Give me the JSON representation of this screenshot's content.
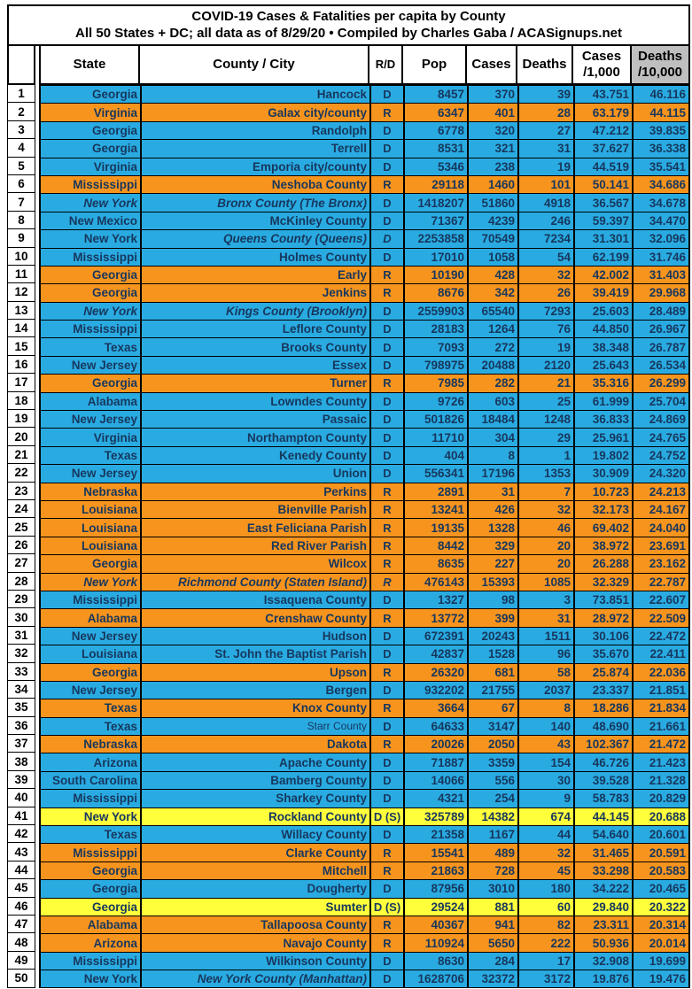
{
  "title": {
    "line1": "COVID-19 Cases & Fatalities per capita by County",
    "line2": "All 50 States + DC; all data as of 8/29/20  • Compiled by Charles Gaba / ACASignups.net"
  },
  "colors": {
    "dem_blue": "#29ABE2",
    "rep_orange": "#F7941E",
    "dem_switch_yellow": "#FFFF3C",
    "header_gray": "#BFBFBF",
    "text_navy": "#17375D",
    "border_black": "#000000"
  },
  "table": {
    "columns": [
      {
        "label": ""
      },
      {
        "label": "State"
      },
      {
        "label": "County / City"
      },
      {
        "label": "R/D"
      },
      {
        "label": "Pop"
      },
      {
        "label": "Cases"
      },
      {
        "label": "Deaths"
      },
      {
        "label": "Cases",
        "label2": "/1,000"
      },
      {
        "label": "Deaths",
        "label2": "/10,000",
        "gray": true
      }
    ],
    "rows": [
      {
        "rank": "1",
        "state": "Georgia",
        "county": "Hancock",
        "rd": "D",
        "pop": "8457",
        "cases": "370",
        "deaths": "39",
        "c1k": "43.751",
        "d10k": "46.116",
        "it": []
      },
      {
        "rank": "2",
        "state": "Virginia",
        "county": "Galax city/county",
        "rd": "R",
        "pop": "6347",
        "cases": "401",
        "deaths": "28",
        "c1k": "63.179",
        "d10k": "44.115",
        "it": []
      },
      {
        "rank": "3",
        "state": "Georgia",
        "county": "Randolph",
        "rd": "D",
        "pop": "6778",
        "cases": "320",
        "deaths": "27",
        "c1k": "47.212",
        "d10k": "39.835",
        "it": []
      },
      {
        "rank": "4",
        "state": "Georgia",
        "county": "Terrell",
        "rd": "D",
        "pop": "8531",
        "cases": "321",
        "deaths": "31",
        "c1k": "37.627",
        "d10k": "36.338",
        "it": []
      },
      {
        "rank": "5",
        "state": "Virginia",
        "county": "Emporia city/county",
        "rd": "D",
        "pop": "5346",
        "cases": "238",
        "deaths": "19",
        "c1k": "44.519",
        "d10k": "35.541",
        "it": []
      },
      {
        "rank": "6",
        "state": "Mississippi",
        "county": "Neshoba County",
        "rd": "R",
        "pop": "29118",
        "cases": "1460",
        "deaths": "101",
        "c1k": "50.141",
        "d10k": "34.686",
        "it": []
      },
      {
        "rank": "7",
        "state": "New York",
        "county": "Bronx County (The Bronx)",
        "rd": "D",
        "pop": "1418207",
        "cases": "51860",
        "deaths": "4918",
        "c1k": "36.567",
        "d10k": "34.678",
        "it": [
          "state",
          "county"
        ]
      },
      {
        "rank": "8",
        "state": "New Mexico",
        "county": "McKinley County",
        "rd": "D",
        "pop": "71367",
        "cases": "4239",
        "deaths": "246",
        "c1k": "59.397",
        "d10k": "34.470",
        "it": []
      },
      {
        "rank": "9",
        "state": "New York",
        "county": "Queens County (Queens)",
        "rd": "D",
        "pop": "2253858",
        "cases": "70549",
        "deaths": "7234",
        "c1k": "31.301",
        "d10k": "32.096",
        "it": [
          "county",
          "rd"
        ]
      },
      {
        "rank": "10",
        "state": "Mississippi",
        "county": "Holmes County",
        "rd": "D",
        "pop": "17010",
        "cases": "1058",
        "deaths": "54",
        "c1k": "62.199",
        "d10k": "31.746",
        "it": []
      },
      {
        "rank": "11",
        "state": "Georgia",
        "county": "Early",
        "rd": "R",
        "pop": "10190",
        "cases": "428",
        "deaths": "32",
        "c1k": "42.002",
        "d10k": "31.403",
        "it": []
      },
      {
        "rank": "12",
        "state": "Georgia",
        "county": "Jenkins",
        "rd": "R",
        "pop": "8676",
        "cases": "342",
        "deaths": "26",
        "c1k": "39.419",
        "d10k": "29.968",
        "it": []
      },
      {
        "rank": "13",
        "state": "New York",
        "county": "Kings County (Brooklyn)",
        "rd": "D",
        "pop": "2559903",
        "cases": "65540",
        "deaths": "7293",
        "c1k": "25.603",
        "d10k": "28.489",
        "it": [
          "state",
          "county"
        ]
      },
      {
        "rank": "14",
        "state": "Mississippi",
        "county": "Leflore County",
        "rd": "D",
        "pop": "28183",
        "cases": "1264",
        "deaths": "76",
        "c1k": "44.850",
        "d10k": "26.967",
        "it": []
      },
      {
        "rank": "15",
        "state": "Texas",
        "county": "Brooks County",
        "rd": "D",
        "pop": "7093",
        "cases": "272",
        "deaths": "19",
        "c1k": "38.348",
        "d10k": "26.787",
        "it": []
      },
      {
        "rank": "16",
        "state": "New Jersey",
        "county": "Essex",
        "rd": "D",
        "pop": "798975",
        "cases": "20488",
        "deaths": "2120",
        "c1k": "25.643",
        "d10k": "26.534",
        "it": []
      },
      {
        "rank": "17",
        "state": "Georgia",
        "county": "Turner",
        "rd": "R",
        "pop": "7985",
        "cases": "282",
        "deaths": "21",
        "c1k": "35.316",
        "d10k": "26.299",
        "it": []
      },
      {
        "rank": "18",
        "state": "Alabama",
        "county": "Lowndes County",
        "rd": "D",
        "pop": "9726",
        "cases": "603",
        "deaths": "25",
        "c1k": "61.999",
        "d10k": "25.704",
        "it": []
      },
      {
        "rank": "19",
        "state": "New Jersey",
        "county": "Passaic",
        "rd": "D",
        "pop": "501826",
        "cases": "18484",
        "deaths": "1248",
        "c1k": "36.833",
        "d10k": "24.869",
        "it": []
      },
      {
        "rank": "20",
        "state": "Virginia",
        "county": "Northampton County",
        "rd": "D",
        "pop": "11710",
        "cases": "304",
        "deaths": "29",
        "c1k": "25.961",
        "d10k": "24.765",
        "it": []
      },
      {
        "rank": "21",
        "state": "Texas",
        "county": "Kenedy County",
        "rd": "D",
        "pop": "404",
        "cases": "8",
        "deaths": "1",
        "c1k": "19.802",
        "d10k": "24.752",
        "it": []
      },
      {
        "rank": "22",
        "state": "New Jersey",
        "county": "Union",
        "rd": "D",
        "pop": "556341",
        "cases": "17196",
        "deaths": "1353",
        "c1k": "30.909",
        "d10k": "24.320",
        "it": []
      },
      {
        "rank": "23",
        "state": "Nebraska",
        "county": "Perkins",
        "rd": "R",
        "pop": "2891",
        "cases": "31",
        "deaths": "7",
        "c1k": "10.723",
        "d10k": "24.213",
        "it": []
      },
      {
        "rank": "24",
        "state": "Louisiana",
        "county": "Bienville Parish",
        "rd": "R",
        "pop": "13241",
        "cases": "426",
        "deaths": "32",
        "c1k": "32.173",
        "d10k": "24.167",
        "it": []
      },
      {
        "rank": "25",
        "state": "Louisiana",
        "county": "East Feliciana Parish",
        "rd": "R",
        "pop": "19135",
        "cases": "1328",
        "deaths": "46",
        "c1k": "69.402",
        "d10k": "24.040",
        "it": []
      },
      {
        "rank": "26",
        "state": "Louisiana",
        "county": "Red River Parish",
        "rd": "R",
        "pop": "8442",
        "cases": "329",
        "deaths": "20",
        "c1k": "38.972",
        "d10k": "23.691",
        "it": []
      },
      {
        "rank": "27",
        "state": "Georgia",
        "county": "Wilcox",
        "rd": "R",
        "pop": "8635",
        "cases": "227",
        "deaths": "20",
        "c1k": "26.288",
        "d10k": "23.162",
        "it": []
      },
      {
        "rank": "28",
        "state": "New York",
        "county": "Richmond County (Staten Island)",
        "rd": "R",
        "pop": "476143",
        "cases": "15393",
        "deaths": "1085",
        "c1k": "32.329",
        "d10k": "22.787",
        "it": [
          "state",
          "county",
          "rd"
        ]
      },
      {
        "rank": "29",
        "state": "Mississippi",
        "county": "Issaquena County",
        "rd": "D",
        "pop": "1327",
        "cases": "98",
        "deaths": "3",
        "c1k": "73.851",
        "d10k": "22.607",
        "it": []
      },
      {
        "rank": "30",
        "state": "Alabama",
        "county": "Crenshaw County",
        "rd": "R",
        "pop": "13772",
        "cases": "399",
        "deaths": "31",
        "c1k": "28.972",
        "d10k": "22.509",
        "it": []
      },
      {
        "rank": "31",
        "state": "New Jersey",
        "county": "Hudson",
        "rd": "D",
        "pop": "672391",
        "cases": "20243",
        "deaths": "1511",
        "c1k": "30.106",
        "d10k": "22.472",
        "it": []
      },
      {
        "rank": "32",
        "state": "Louisiana",
        "county": "St. John the Baptist Parish",
        "rd": "D",
        "pop": "42837",
        "cases": "1528",
        "deaths": "96",
        "c1k": "35.670",
        "d10k": "22.411",
        "it": []
      },
      {
        "rank": "33",
        "state": "Georgia",
        "county": "Upson",
        "rd": "R",
        "pop": "26320",
        "cases": "681",
        "deaths": "58",
        "c1k": "25.874",
        "d10k": "22.036",
        "it": []
      },
      {
        "rank": "34",
        "state": "New Jersey",
        "county": "Bergen",
        "rd": "D",
        "pop": "932202",
        "cases": "21755",
        "deaths": "2037",
        "c1k": "23.337",
        "d10k": "21.851",
        "it": []
      },
      {
        "rank": "35",
        "state": "Texas",
        "county": "Knox County",
        "rd": "R",
        "pop": "3664",
        "cases": "67",
        "deaths": "8",
        "c1k": "18.286",
        "d10k": "21.834",
        "it": []
      },
      {
        "rank": "36",
        "state": "Texas",
        "county": "Starr County",
        "rd": "D",
        "pop": "64633",
        "cases": "3147",
        "deaths": "140",
        "c1k": "48.690",
        "d10k": "21.661",
        "it": [],
        "county_small": true
      },
      {
        "rank": "37",
        "state": "Nebraska",
        "county": "Dakota",
        "rd": "R",
        "pop": "20026",
        "cases": "2050",
        "deaths": "43",
        "c1k": "102.367",
        "d10k": "21.472",
        "it": []
      },
      {
        "rank": "38",
        "state": "Arizona",
        "county": "Apache County",
        "rd": "D",
        "pop": "71887",
        "cases": "3359",
        "deaths": "154",
        "c1k": "46.726",
        "d10k": "21.423",
        "it": []
      },
      {
        "rank": "39",
        "state": "South Carolina",
        "county": "Bamberg County",
        "rd": "D",
        "pop": "14066",
        "cases": "556",
        "deaths": "30",
        "c1k": "39.528",
        "d10k": "21.328",
        "it": []
      },
      {
        "rank": "40",
        "state": "Mississippi",
        "county": "Sharkey County",
        "rd": "D",
        "pop": "4321",
        "cases": "254",
        "deaths": "9",
        "c1k": "58.783",
        "d10k": "20.829",
        "it": []
      },
      {
        "rank": "41",
        "state": "New York",
        "county": "Rockland County",
        "rd": "D (S)",
        "pop": "325789",
        "cases": "14382",
        "deaths": "674",
        "c1k": "44.145",
        "d10k": "20.688",
        "it": []
      },
      {
        "rank": "42",
        "state": "Texas",
        "county": "Willacy County",
        "rd": "D",
        "pop": "21358",
        "cases": "1167",
        "deaths": "44",
        "c1k": "54.640",
        "d10k": "20.601",
        "it": []
      },
      {
        "rank": "43",
        "state": "Mississippi",
        "county": "Clarke County",
        "rd": "R",
        "pop": "15541",
        "cases": "489",
        "deaths": "32",
        "c1k": "31.465",
        "d10k": "20.591",
        "it": []
      },
      {
        "rank": "44",
        "state": "Georgia",
        "county": "Mitchell",
        "rd": "R",
        "pop": "21863",
        "cases": "728",
        "deaths": "45",
        "c1k": "33.298",
        "d10k": "20.583",
        "it": []
      },
      {
        "rank": "45",
        "state": "Georgia",
        "county": "Dougherty",
        "rd": "D",
        "pop": "87956",
        "cases": "3010",
        "deaths": "180",
        "c1k": "34.222",
        "d10k": "20.465",
        "it": []
      },
      {
        "rank": "46",
        "state": "Georgia",
        "county": "Sumter",
        "rd": "D (S)",
        "pop": "29524",
        "cases": "881",
        "deaths": "60",
        "c1k": "29.840",
        "d10k": "20.322",
        "it": []
      },
      {
        "rank": "47",
        "state": "Alabama",
        "county": "Tallapoosa County",
        "rd": "R",
        "pop": "40367",
        "cases": "941",
        "deaths": "82",
        "c1k": "23.311",
        "d10k": "20.314",
        "it": []
      },
      {
        "rank": "48",
        "state": "Arizona",
        "county": "Navajo County",
        "rd": "R",
        "pop": "110924",
        "cases": "5650",
        "deaths": "222",
        "c1k": "50.936",
        "d10k": "20.014",
        "it": []
      },
      {
        "rank": "49",
        "state": "Mississippi",
        "county": "Wilkinson County",
        "rd": "D",
        "pop": "8630",
        "cases": "284",
        "deaths": "17",
        "c1k": "32.908",
        "d10k": "19.699",
        "it": []
      },
      {
        "rank": "50",
        "state": "New York",
        "county": "New York County (Manhattan)",
        "rd": "D",
        "pop": "1628706",
        "cases": "32372",
        "deaths": "3172",
        "c1k": "19.876",
        "d10k": "19.476",
        "it": [
          "county"
        ]
      }
    ]
  }
}
